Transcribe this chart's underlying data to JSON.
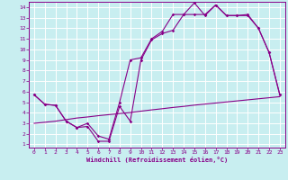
{
  "xlabel": "Windchill (Refroidissement éolien,°C)",
  "bg_color": "#c8eef0",
  "grid_color": "#ffffff",
  "line_color": "#880088",
  "xlim": [
    -0.5,
    23.5
  ],
  "ylim": [
    0.7,
    14.5
  ],
  "xticks": [
    0,
    1,
    2,
    3,
    4,
    5,
    6,
    7,
    8,
    9,
    10,
    11,
    12,
    13,
    14,
    15,
    16,
    17,
    18,
    19,
    20,
    21,
    22,
    23
  ],
  "yticks": [
    1,
    2,
    3,
    4,
    5,
    6,
    7,
    8,
    9,
    10,
    11,
    12,
    13,
    14
  ],
  "series1_x": [
    0,
    1,
    2,
    3,
    4,
    5,
    6,
    7,
    8,
    9,
    10,
    11,
    12,
    13,
    14,
    15,
    16,
    17,
    18,
    19,
    20,
    21,
    22,
    23
  ],
  "series1_y": [
    5.7,
    4.8,
    4.7,
    3.2,
    2.6,
    2.7,
    1.3,
    1.3,
    4.6,
    3.2,
    9.0,
    10.9,
    11.5,
    11.8,
    13.3,
    14.4,
    13.2,
    14.2,
    13.2,
    13.2,
    13.2,
    12.0,
    9.7,
    5.7
  ],
  "series2_x": [
    0,
    1,
    2,
    3,
    4,
    5,
    6,
    7,
    8,
    9,
    10,
    11,
    12,
    13,
    14,
    15,
    16,
    17,
    18,
    19,
    20,
    21,
    22,
    23
  ],
  "series2_y": [
    5.7,
    4.8,
    4.7,
    3.2,
    2.6,
    3.0,
    1.8,
    1.5,
    5.0,
    9.0,
    9.2,
    11.0,
    11.7,
    13.3,
    13.3,
    13.3,
    13.3,
    14.2,
    13.2,
    13.2,
    13.3,
    12.0,
    9.7,
    5.7
  ],
  "series3_x": [
    0,
    1,
    2,
    3,
    4,
    5,
    6,
    7,
    8,
    9,
    10,
    11,
    12,
    13,
    14,
    15,
    16,
    17,
    18,
    19,
    20,
    21,
    22,
    23
  ],
  "series3_y": [
    3.0,
    3.1,
    3.2,
    3.35,
    3.5,
    3.6,
    3.72,
    3.82,
    3.92,
    4.02,
    4.15,
    4.27,
    4.38,
    4.5,
    4.6,
    4.72,
    4.82,
    4.92,
    5.02,
    5.12,
    5.22,
    5.32,
    5.42,
    5.52
  ],
  "spine_color": "#880088",
  "tick_labelsize": 4.5,
  "xlabel_fontsize": 5.0,
  "lw": 0.8,
  "ms": 1.8
}
